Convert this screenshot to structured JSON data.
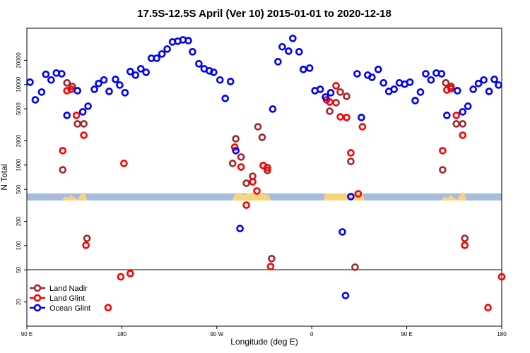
{
  "chart_data": {
    "type": "scatter",
    "title": "17.5S-12.5S April (Ver 10)   2015-01-01 to 2020-12-18",
    "xlabel": "Longitude (deg E)",
    "ylabel": "N Total",
    "log_y": true,
    "legend": "lower left",
    "xlim": [
      90,
      540
    ],
    "ylim": [
      10,
      50000
    ],
    "xticks": [
      {
        "value": 90,
        "label": "90 E"
      },
      180,
      {
        "value": 270,
        "label": "90 W"
      },
      {
        "value": 360,
        "label": "0"
      },
      {
        "value": 450,
        "label": "90 E"
      },
      {
        "value": 540,
        "label": "180"
      }
    ],
    "yticks": [
      20,
      50,
      100,
      200,
      500,
      1000,
      2000,
      5000,
      10000,
      20000
    ],
    "series": [
      {
        "name": "Land Nadir",
        "color": "#a0282d",
        "x": [
          124,
          128,
          133,
          138,
          144,
          147,
          285,
          288,
          293,
          298,
          304,
          309,
          313,
          314,
          318,
          322,
          377,
          383,
          387,
          393,
          397,
          401,
          484,
          487,
          492,
          497,
          503,
          505
        ],
        "values": [
          873,
          10500,
          9480,
          3250,
          3250,
          123,
          1050,
          2120,
          1260,
          595,
          728,
          2990,
          2210,
          986,
          857,
          69,
          4670,
          5950,
          8060,
          7140,
          1110,
          54,
          873,
          10500,
          9480,
          3250,
          3250,
          123
        ]
      },
      {
        "name": "Land Glint",
        "color": "#ff0000",
        "x": [
          124,
          128,
          132,
          137,
          144,
          146,
          167,
          179,
          182,
          188,
          287,
          293,
          298,
          304,
          308,
          314,
          318,
          321,
          374,
          377,
          383,
          387,
          393,
          397,
          404,
          408,
          484,
          488,
          492,
          497,
          503,
          505,
          527,
          540
        ],
        "values": [
          1510,
          8390,
          8730,
          4140,
          2350,
          101,
          17,
          41,
          1050,
          45,
          1670,
          947,
          318,
          620,
          477,
          986,
          929,
          55,
          6460,
          6070,
          9660,
          3970,
          3900,
          1420,
          440,
          2990,
          1510,
          8570,
          8910,
          4140,
          2350,
          101,
          17,
          41
        ]
      },
      {
        "name": "Ocean Glint",
        "color": "#0000ff",
        "x": [
          93,
          98,
          104,
          108,
          113,
          118,
          123,
          128,
          138,
          143,
          148,
          154,
          158,
          163,
          168,
          174,
          178,
          183,
          188,
          193,
          198,
          203,
          208,
          213,
          218,
          223,
          228,
          233,
          238,
          243,
          247,
          253,
          258,
          263,
          267,
          273,
          278,
          283,
          288,
          292,
          323,
          328,
          332,
          338,
          342,
          348,
          352,
          358,
          363,
          368,
          373,
          378,
          389,
          392,
          397,
          403,
          407,
          413,
          417,
          423,
          428,
          433,
          438,
          443,
          448,
          453,
          458,
          463,
          468,
          473,
          478,
          483,
          488,
          498,
          503,
          508,
          513,
          518,
          523,
          528,
          533,
          537
        ],
        "values": [
          10700,
          6460,
          8060,
          13400,
          11400,
          13900,
          13600,
          4140,
          8390,
          4580,
          5380,
          8730,
          10300,
          11400,
          8220,
          11600,
          9860,
          7910,
          14500,
          13100,
          15700,
          14200,
          21200,
          21200,
          24000,
          27600,
          33800,
          34500,
          35900,
          35100,
          25500,
          18100,
          15700,
          14800,
          14200,
          11400,
          6720,
          10900,
          1510,
          163,
          4960,
          19200,
          29400,
          26000,
          37400,
          25500,
          15400,
          16000,
          8390,
          8730,
          7000,
          7910,
          148,
          24,
          406,
          13600,
          3900,
          13100,
          12300,
          15400,
          10500,
          8220,
          8730,
          10500,
          10100,
          10700,
          6320,
          8060,
          13600,
          11400,
          13900,
          13600,
          4140,
          8390,
          4580,
          5380,
          8730,
          10300,
          11400,
          8220,
          11600,
          9860
        ]
      }
    ]
  }
}
